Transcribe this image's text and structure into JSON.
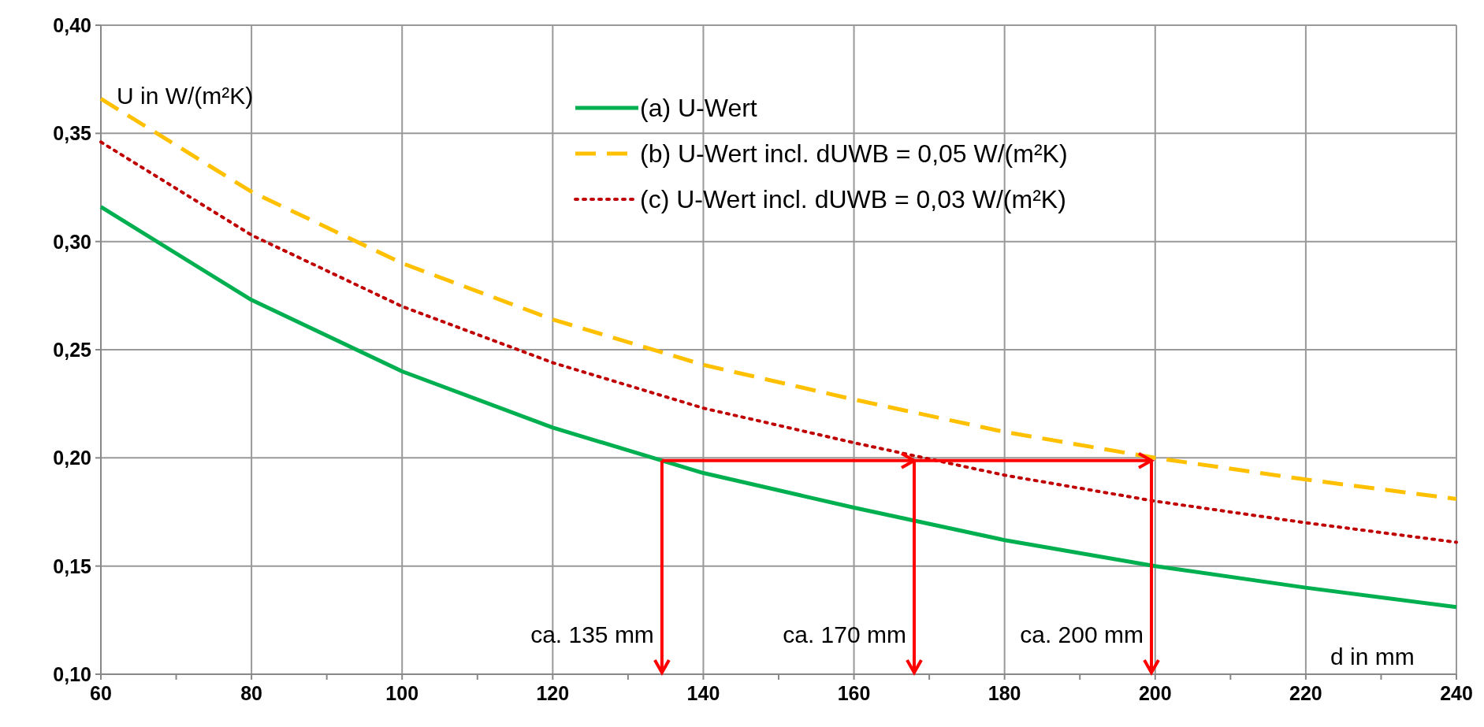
{
  "chart_data": {
    "type": "line",
    "xlabel": "d in mm",
    "ylabel": "U in W/(m²K)",
    "x": [
      60,
      80,
      100,
      120,
      140,
      160,
      180,
      200,
      220,
      240
    ],
    "series": [
      {
        "name": "(a) U-Wert",
        "color": "#00b050",
        "line_style": "solid",
        "values": [
          0.316,
          0.273,
          0.24,
          0.214,
          0.193,
          0.177,
          0.162,
          0.15,
          0.14,
          0.131
        ]
      },
      {
        "name": "(b) U-Wert incl. dUWB = 0,05 W/(m²K)",
        "color": "#ffc000",
        "line_style": "dashed",
        "values": [
          0.366,
          0.323,
          0.29,
          0.264,
          0.243,
          0.227,
          0.212,
          0.2,
          0.19,
          0.181
        ]
      },
      {
        "name": "(c) U-Wert incl. dUWB = 0,03 W/(m²K)",
        "color": "#c00000",
        "line_style": "dotted",
        "values": [
          0.346,
          0.303,
          0.27,
          0.244,
          0.223,
          0.207,
          0.192,
          0.18,
          0.17,
          0.161
        ]
      }
    ],
    "xlim": [
      60,
      240
    ],
    "xticks": [
      60,
      {
        "value": 70,
        "label": null
      },
      80,
      {
        "value": 90,
        "label": null
      },
      100,
      {
        "value": 110,
        "label": null
      },
      120,
      {
        "value": 130,
        "label": null
      },
      140,
      {
        "value": 150,
        "label": null
      },
      160,
      {
        "value": 170,
        "label": null
      },
      180,
      {
        "value": 190,
        "label": null
      },
      200,
      {
        "value": 210,
        "label": null
      },
      220,
      {
        "value": 230,
        "label": null
      },
      240
    ],
    "ylim": [
      0.1,
      0.4
    ],
    "yticks": [
      {
        "value": 0.1,
        "label": "0,10"
      },
      {
        "value": 0.15,
        "label": "0,15"
      },
      {
        "value": 0.2,
        "label": "0,20"
      },
      {
        "value": 0.25,
        "label": "0,25"
      },
      {
        "value": 0.3,
        "label": "0,30"
      },
      {
        "value": 0.35,
        "label": "0,35"
      },
      {
        "value": 0.4,
        "label": "0,40"
      }
    ],
    "grid": true,
    "legend": "top right",
    "marker": "none",
    "ref_lines": [
      {
        "axis": "x",
        "value": 134.5,
        "label": "ca. 135 mm",
        "color": "#ff0000"
      },
      {
        "axis": "x",
        "value": 168,
        "label": "ca. 170 mm",
        "color": "#ff0000"
      },
      {
        "axis": "x",
        "value": 199.5,
        "label": "ca. 200 mm",
        "color": "#ff0000"
      }
    ]
  }
}
